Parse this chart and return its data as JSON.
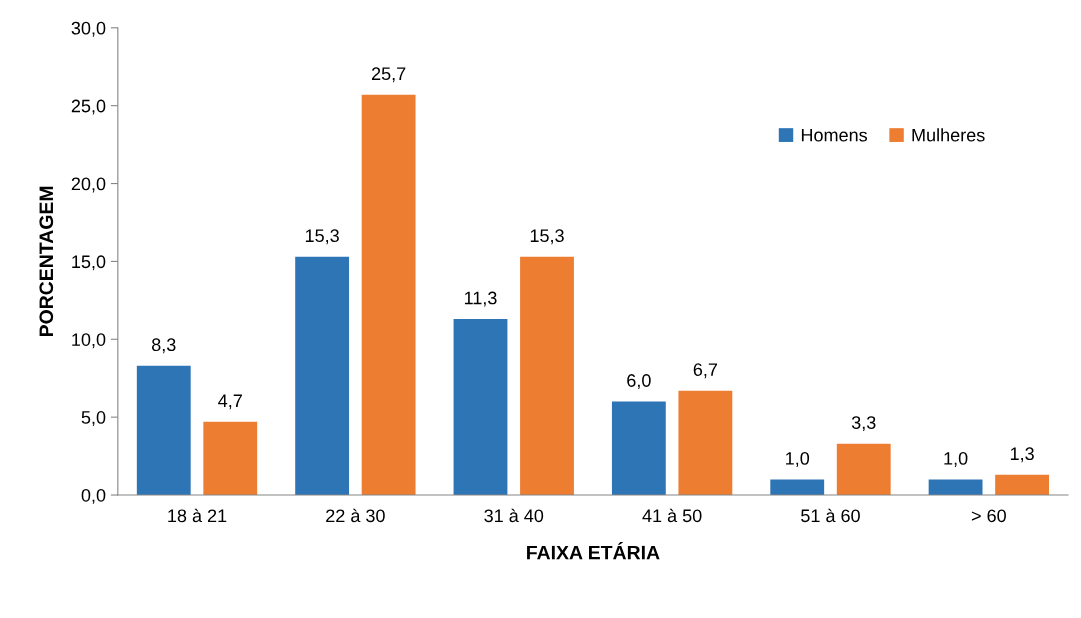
{
  "chart_data": {
    "type": "bar",
    "xlabel": "FAIXA ETÁRIA",
    "ylabel": "PORCENTAGEM",
    "categories": [
      "18 à 21",
      "22 à 30",
      "31 à 40",
      "41 à 50",
      "51 à 60",
      "> 60"
    ],
    "series": [
      {
        "name": "Homens",
        "color": "#2e75b6",
        "values": [
          8.3,
          15.3,
          11.3,
          6.0,
          1.0,
          1.0
        ],
        "value_labels": [
          "8,3",
          "15,3",
          "11,3",
          "6,0",
          "1,0",
          "1,0"
        ]
      },
      {
        "name": "Mulheres",
        "color": "#ed7d31",
        "values": [
          4.7,
          25.7,
          15.3,
          6.7,
          3.3,
          1.3
        ],
        "value_labels": [
          "4,7",
          "25,7",
          "15,3",
          "6,7",
          "3,3",
          "1,3"
        ]
      }
    ],
    "ylim": [
      0,
      30
    ],
    "yticks": [
      {
        "value": 0,
        "label": "0,0"
      },
      {
        "value": 5,
        "label": "5,0"
      },
      {
        "value": 10,
        "label": "10,0"
      },
      {
        "value": 15,
        "label": "15,0"
      },
      {
        "value": 20,
        "label": "20,0"
      },
      {
        "value": 25,
        "label": "25,0"
      },
      {
        "value": 30,
        "label": "30,0"
      }
    ],
    "grid": false,
    "legend": "top right"
  }
}
